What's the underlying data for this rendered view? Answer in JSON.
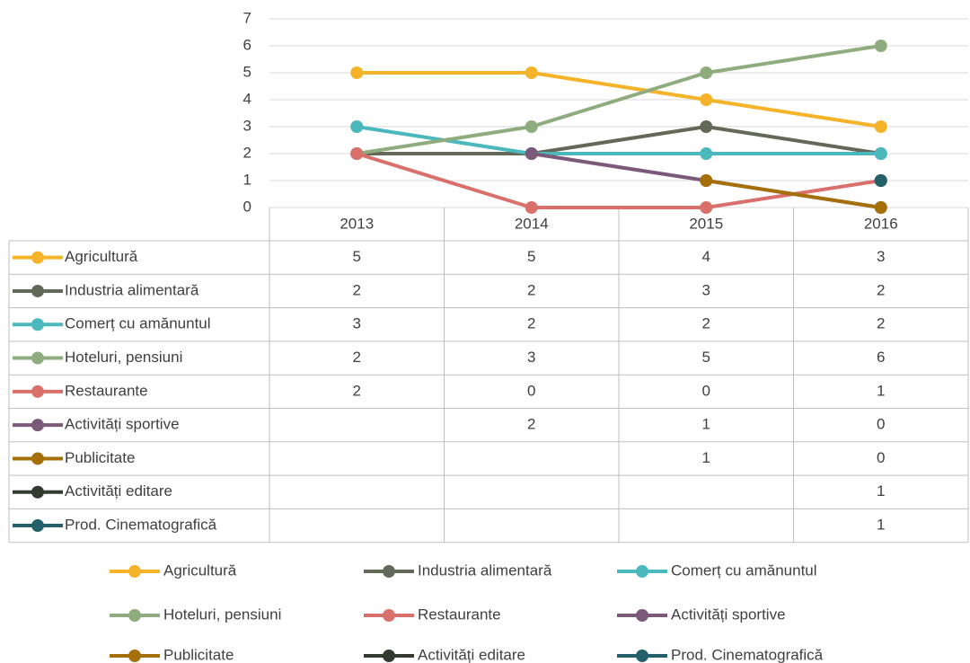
{
  "chart_data": {
    "type": "line",
    "categories": [
      "2013",
      "2014",
      "2015",
      "2016"
    ],
    "series": [
      {
        "name": "Agricultură",
        "color": "#f5b32a",
        "values": [
          5,
          5,
          4,
          3
        ]
      },
      {
        "name": "Industria alimentară",
        "color": "#646858",
        "values": [
          2,
          2,
          3,
          2
        ]
      },
      {
        "name": "Comerț cu amănuntul",
        "color": "#4ab8bd",
        "values": [
          3,
          2,
          2,
          2
        ]
      },
      {
        "name": "Hoteluri, pensiuni",
        "color": "#8fac7e",
        "values": [
          2,
          3,
          5,
          6
        ]
      },
      {
        "name": "Restaurante",
        "color": "#d9706b",
        "values": [
          2,
          0,
          0,
          1
        ]
      },
      {
        "name": "Activități sportive",
        "color": "#7a5a78",
        "values": [
          null,
          2,
          1,
          0
        ]
      },
      {
        "name": "Publicitate",
        "color": "#a5700a",
        "values": [
          null,
          null,
          1,
          0
        ]
      },
      {
        "name": "Activități editare",
        "color": "#333a2f",
        "values": [
          null,
          null,
          null,
          1
        ]
      },
      {
        "name": "Prod. Cinematografică",
        "color": "#23606a",
        "values": [
          null,
          null,
          null,
          1
        ]
      }
    ],
    "ylim": [
      0,
      7
    ],
    "yticks": [
      0,
      1,
      2,
      3,
      4,
      5,
      6,
      7
    ],
    "grid": true,
    "data_table": true,
    "legend": "bottom"
  }
}
